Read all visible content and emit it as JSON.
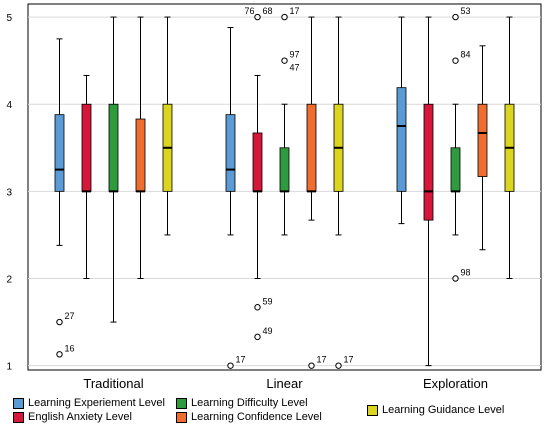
{
  "chart_data": {
    "type": "boxplot",
    "title": "",
    "xlabel": "",
    "ylabel": "",
    "ylim": [
      0.95,
      5.15
    ],
    "yticks": [
      1,
      2,
      3,
      4,
      5
    ],
    "grid": "horizontal",
    "legend_position": "bottom",
    "categories": [
      "Traditional",
      "Linear",
      "Exploration"
    ],
    "series": [
      {
        "name": "Learning Experiement Level",
        "color": "#5b9bd5"
      },
      {
        "name": "English Anxiety Level",
        "color": "#d5173a"
      },
      {
        "name": "Learning Difficulty Level",
        "color": "#2e9b3e"
      },
      {
        "name": "Learning Confidence Level",
        "color": "#ee6d2f"
      },
      {
        "name": "Learning Guidance Level",
        "color": "#dcd520"
      }
    ],
    "boxes": [
      [
        {
          "min": 2.38,
          "q1": 3.0,
          "median": 3.25,
          "q3": 3.88,
          "max": 4.75,
          "outliers": [
            {
              "value": 1.5,
              "label": "27"
            },
            {
              "value": 1.13,
              "label": "16"
            }
          ]
        },
        {
          "min": 2.0,
          "q1": 3.0,
          "median": 3.0,
          "q3": 4.0,
          "max": 4.33,
          "outliers": []
        },
        {
          "min": 1.5,
          "q1": 3.0,
          "median": 3.0,
          "q3": 4.0,
          "max": 5.0,
          "outliers": []
        },
        {
          "min": 2.0,
          "q1": 3.0,
          "median": 3.0,
          "q3": 3.83,
          "max": 5.0,
          "outliers": []
        },
        {
          "min": 2.5,
          "q1": 3.0,
          "median": 3.5,
          "q3": 4.0,
          "max": 5.0,
          "outliers": []
        }
      ],
      [
        {
          "min": 2.5,
          "q1": 3.0,
          "median": 3.25,
          "q3": 3.88,
          "max": 4.88,
          "outliers": [
            {
              "value": 1.0,
              "label": "17"
            }
          ]
        },
        {
          "min": 2.0,
          "q1": 3.0,
          "median": 3.0,
          "q3": 3.67,
          "max": 4.33,
          "outliers": [
            {
              "value": 5.0,
              "label": "76"
            },
            {
              "value": 5.0,
              "label": "68"
            },
            {
              "value": 1.67,
              "label": "59"
            },
            {
              "value": 1.33,
              "label": "49"
            }
          ]
        },
        {
          "min": 2.5,
          "q1": 3.0,
          "median": 3.0,
          "q3": 3.5,
          "max": 4.0,
          "outliers": [
            {
              "value": 5.0,
              "label": "17"
            },
            {
              "value": 4.5,
              "label": "97"
            },
            {
              "value": 4.5,
              "label": "47"
            }
          ]
        },
        {
          "min": 2.67,
          "q1": 3.0,
          "median": 3.0,
          "q3": 4.0,
          "max": 5.0,
          "outliers": [
            {
              "value": 1.0,
              "label": "17"
            }
          ]
        },
        {
          "min": 2.5,
          "q1": 3.0,
          "median": 3.5,
          "q3": 4.0,
          "max": 5.0,
          "outliers": [
            {
              "value": 1.0,
              "label": "17"
            }
          ]
        }
      ],
      [
        {
          "min": 2.63,
          "q1": 3.0,
          "median": 3.75,
          "q3": 4.19,
          "max": 5.0,
          "outliers": []
        },
        {
          "min": 1.0,
          "q1": 2.67,
          "median": 3.0,
          "q3": 4.0,
          "max": 5.0,
          "outliers": []
        },
        {
          "min": 2.5,
          "q1": 3.0,
          "median": 3.0,
          "q3": 3.5,
          "max": 4.0,
          "outliers": [
            {
              "value": 5.0,
              "label": "53"
            },
            {
              "value": 4.5,
              "label": "84"
            },
            {
              "value": 2.0,
              "label": "98"
            }
          ]
        },
        {
          "min": 2.33,
          "q1": 3.17,
          "median": 3.67,
          "q3": 4.0,
          "max": 4.67,
          "outliers": []
        },
        {
          "min": 2.0,
          "q1": 3.0,
          "median": 3.5,
          "q3": 4.0,
          "max": 5.0,
          "outliers": []
        }
      ]
    ]
  }
}
